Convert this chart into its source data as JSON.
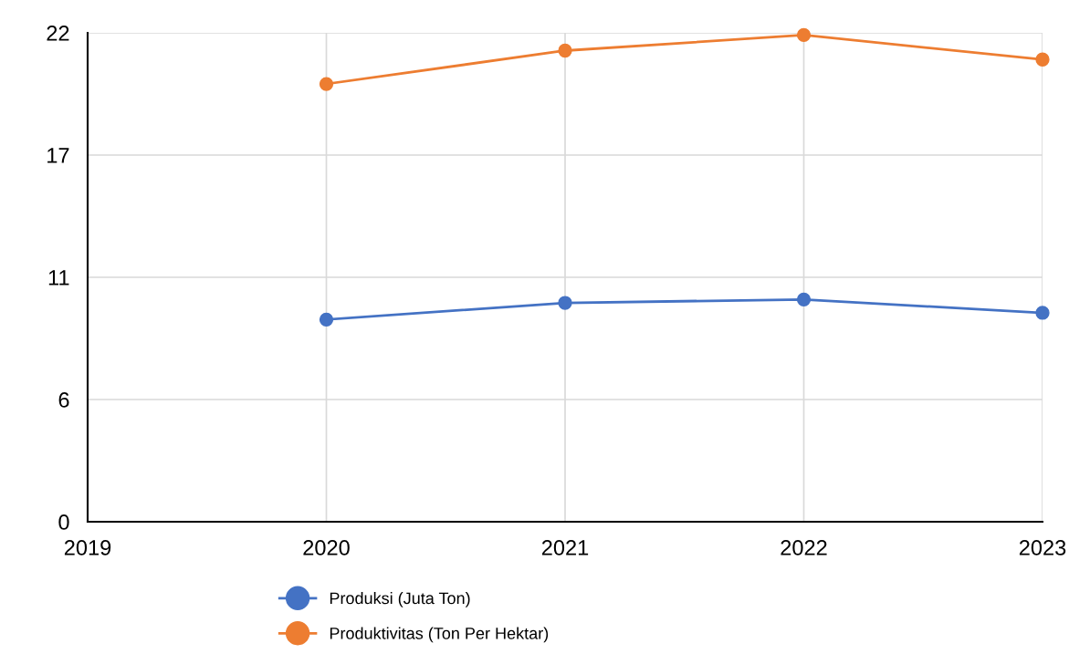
{
  "chart_data": {
    "type": "line",
    "x": [
      2020,
      2021,
      2022,
      2023
    ],
    "series": [
      {
        "name": "Produksi (Juta Ton)",
        "color": "#4472c4",
        "values": [
          9.1,
          9.85,
          10.0,
          9.4
        ]
      },
      {
        "name": "Produktivitas (Ton Per Hektar)",
        "color": "#ed7d31",
        "values": [
          19.7,
          21.2,
          21.9,
          20.8
        ]
      }
    ],
    "xlim": [
      2019,
      2023
    ],
    "xticks": [
      2019,
      2020,
      2021,
      2022,
      2023
    ],
    "ylim": [
      0,
      22
    ],
    "yticks": [
      0,
      {
        "value": 5.5,
        "label": "6"
      },
      11,
      {
        "value": 16.5,
        "label": "17"
      },
      22
    ],
    "grid": true,
    "legend": "bottom",
    "marker": "circle",
    "line_style": "solid"
  }
}
